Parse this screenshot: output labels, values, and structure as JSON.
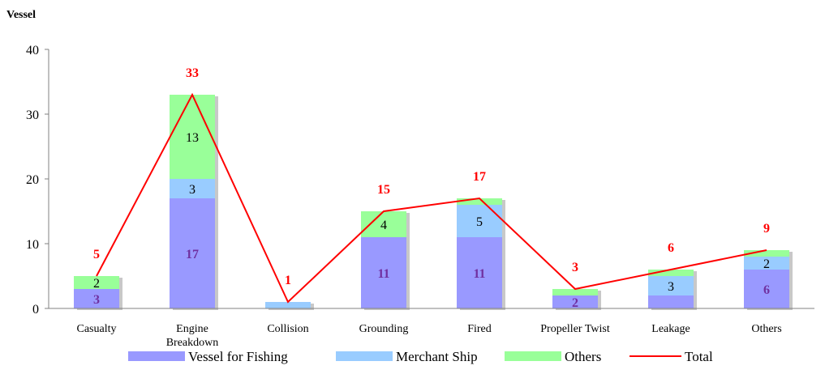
{
  "chart_data": {
    "type": "bar",
    "stacked": true,
    "title": "",
    "ylabel": "Vessel",
    "xlabel": "",
    "ylim": [
      0,
      40
    ],
    "yticks": [
      0,
      10,
      20,
      30,
      40
    ],
    "grid": false,
    "legend_position": "bottom",
    "categories": [
      [
        "Casualty"
      ],
      [
        "Engine",
        "Breakdown"
      ],
      [
        "Collision"
      ],
      [
        "Grounding"
      ],
      [
        "Fired"
      ],
      [
        "Propeller Twist"
      ],
      [
        "Leakage"
      ],
      [
        "Others"
      ]
    ],
    "series": [
      {
        "name": "Vessel for Fishing",
        "color": "#9999ff",
        "values": [
          3,
          17,
          0,
          11,
          11,
          2,
          2,
          6
        ],
        "labels": [
          "3",
          "17",
          "",
          "11",
          "11",
          "2",
          "",
          "6"
        ],
        "label_color": "#7030a0",
        "label_bold": true
      },
      {
        "name": "Merchant Ship",
        "color": "#99ccff",
        "values": [
          0,
          3,
          1,
          0,
          5,
          0,
          3,
          2
        ],
        "labels": [
          "",
          "3",
          "",
          "",
          "5",
          "",
          "3",
          "2"
        ],
        "label_color": "#000000",
        "label_bold": false
      },
      {
        "name": "Others",
        "color": "#99ff99",
        "values": [
          2,
          13,
          0,
          4,
          1,
          1,
          1,
          1
        ],
        "labels": [
          "2",
          "13",
          "",
          "4",
          "",
          "",
          "",
          ""
        ],
        "label_color": "#000000",
        "label_bold": false
      }
    ],
    "total": {
      "name": "Total",
      "color": "#ff0000",
      "values": [
        5,
        33,
        1,
        15,
        17,
        3,
        6,
        9
      ],
      "labels": [
        "5",
        "33",
        "1",
        "15",
        "17",
        "3",
        "6",
        "9"
      ]
    }
  }
}
